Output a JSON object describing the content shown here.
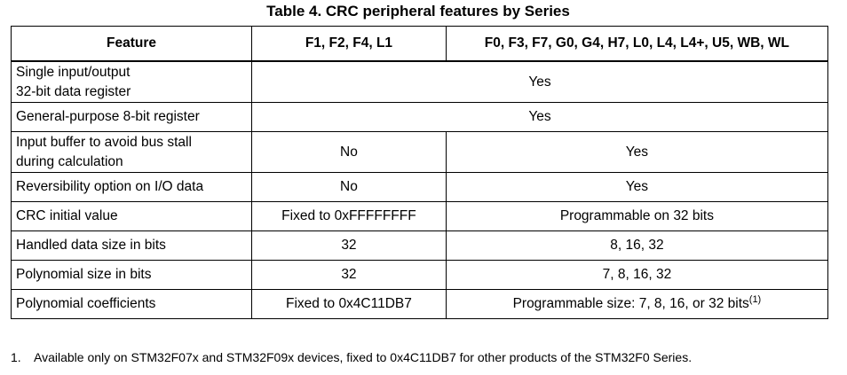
{
  "table": {
    "caption": "Table 4. CRC peripheral features by Series",
    "headers": [
      "Feature",
      "F1, F2, F4, L1",
      "F0, F3, F7, G0, G4, H7, L0, L4, L4+, U5, WB, WL"
    ],
    "rows": [
      {
        "feature_line1": "Single input/output",
        "feature_line2": "32-bit data register",
        "merged": "Yes"
      },
      {
        "feature": "General-purpose 8-bit register",
        "merged": "Yes"
      },
      {
        "feature_line1": "Input buffer to avoid bus stall",
        "feature_line2": "during calculation",
        "a": "No",
        "b": "Yes"
      },
      {
        "feature": "Reversibility option on I/O data",
        "a": "No",
        "b": "Yes"
      },
      {
        "feature": "CRC initial value",
        "a": "Fixed to 0xFFFFFFFF",
        "b": "Programmable on 32 bits"
      },
      {
        "feature": "Handled data size in bits",
        "a": "32",
        "b": "8, 16, 32"
      },
      {
        "feature": "Polynomial size in bits",
        "a": "32",
        "b": "7, 8, 16, 32"
      },
      {
        "feature": "Polynomial coefficients",
        "a": "Fixed to 0x4C11DB7",
        "b": "Programmable size: 7, 8, 16, or 32 bits",
        "b_note": "(1)"
      }
    ]
  },
  "footnote": {
    "number": "1.",
    "text": "Available only on STM32F07x and STM32F09x devices, fixed to 0x4C11DB7 for other products of the STM32F0 Series."
  }
}
